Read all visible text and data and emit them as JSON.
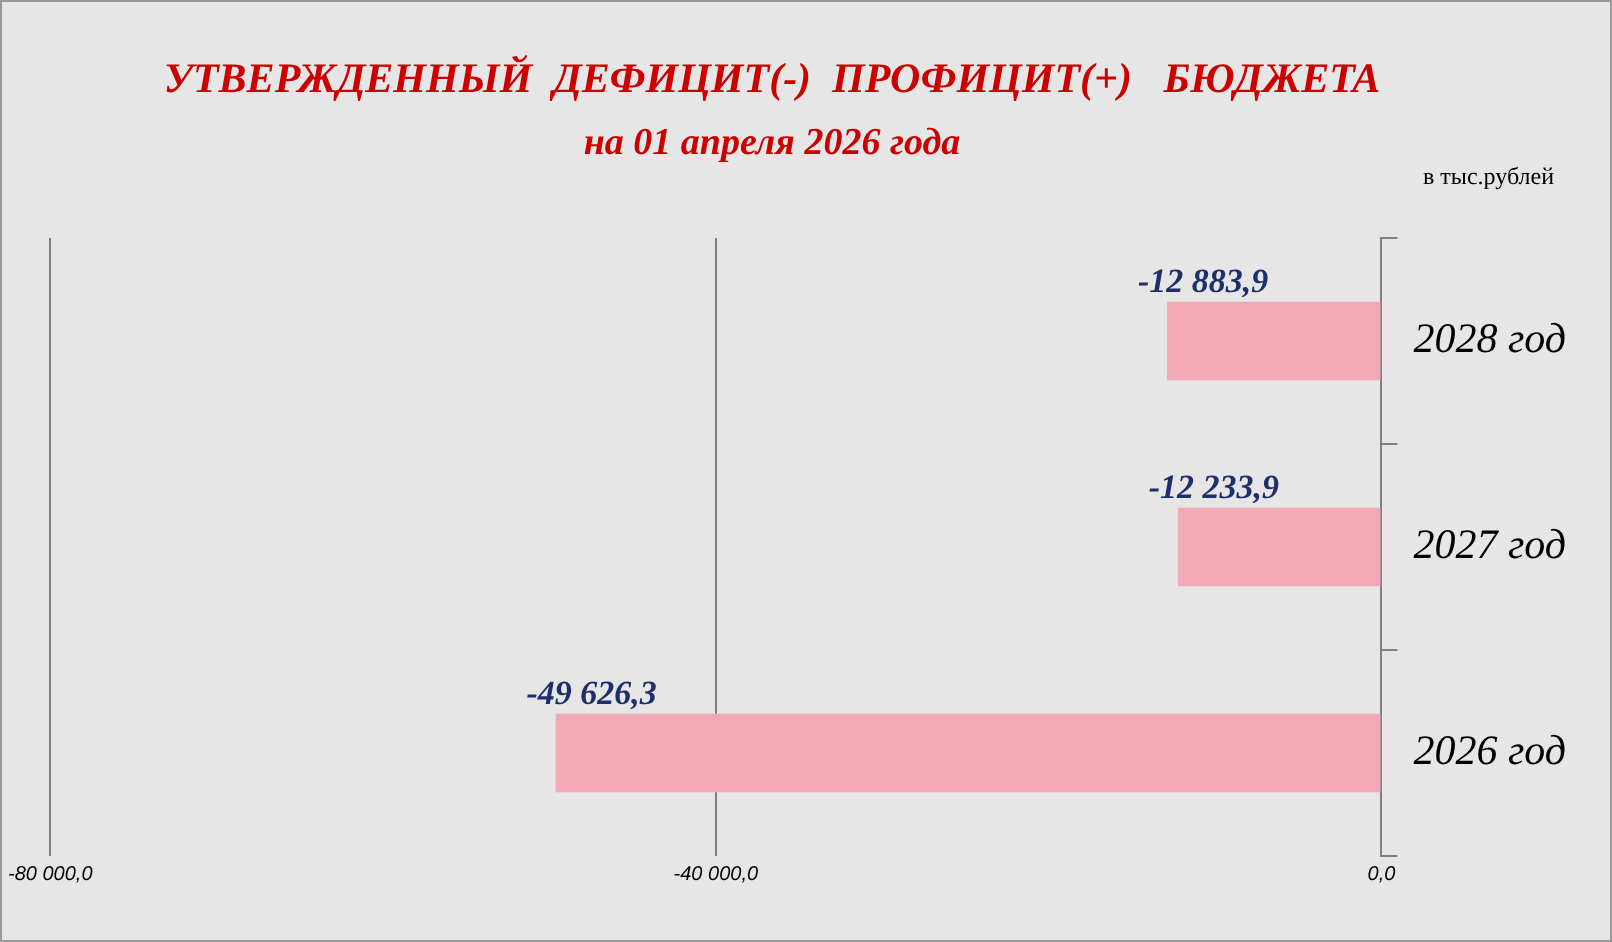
{
  "chart_data": {
    "type": "bar",
    "orientation": "horizontal",
    "title": "УТВЕРЖДЕННЫЙ  ДЕФИЦИТ(-)  ПРОФИЦИТ(+)   БЮДЖЕТА",
    "subtitle": "на 01 апреля 2026 года",
    "annotations": [
      "в тыс.рублей"
    ],
    "categories": [
      "2028 год",
      "2027 год",
      "2026 год"
    ],
    "values": [
      -12883.9,
      -12233.9,
      -49626.3
    ],
    "value_labels": [
      "-12 883,9",
      "-12 233,9",
      "-49 626,3"
    ],
    "color": "#f2a9b6",
    "xlim": [
      -80000,
      0
    ],
    "xticks": [
      {
        "value": -80000,
        "label": "-80 000,0"
      },
      {
        "value": -40000,
        "label": "-40 000,0"
      },
      {
        "value": 0,
        "label": "0,0"
      }
    ],
    "grid": "x",
    "legend": false
  }
}
